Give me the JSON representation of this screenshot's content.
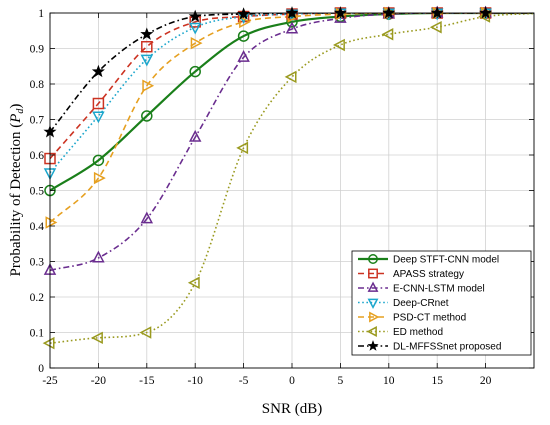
{
  "chart_data": {
    "type": "line",
    "xlabel": "SNR (dB)",
    "ylabel": "Probability of Detection (P_d)",
    "ylabel_main": "Probability of Detection (",
    "ylabel_sym": "P",
    "ylabel_sub": "d",
    "ylabel_close": ")",
    "xlim": [
      -25,
      25
    ],
    "ylim": [
      0,
      1
    ],
    "xticks": [
      -25,
      -20,
      -15,
      -10,
      -5,
      0,
      5,
      10,
      15,
      20
    ],
    "xtick_labels": [
      "-25",
      "-20",
      "-15",
      "-10",
      "-5",
      "0",
      "5",
      "10",
      "15",
      "20"
    ],
    "yticks": [
      0,
      0.1,
      0.2,
      0.3,
      0.4,
      0.5,
      0.6,
      0.7,
      0.8,
      0.9,
      1
    ],
    "ytick_labels": [
      "0",
      "0.1",
      "0.2",
      "0.3",
      "0.4",
      "0.5",
      "0.6",
      "0.7",
      "0.8",
      "0.9",
      "1"
    ],
    "grid": true,
    "legend_position": "bottom-right",
    "x": [
      -25,
      -20,
      -15,
      -10,
      -5,
      0,
      5,
      10,
      15,
      20
    ],
    "series": [
      {
        "name": "Deep STFT-CNN model",
        "color": "#1a7f1a",
        "dash": "solid",
        "marker": "circle",
        "values": [
          0.5,
          0.585,
          0.71,
          0.835,
          0.935,
          0.975,
          0.99,
          0.997,
          1.0,
          1.0
        ]
      },
      {
        "name": "APASS strategy",
        "color": "#cc3322",
        "dash": "dashed",
        "marker": "square",
        "values": [
          0.59,
          0.745,
          0.905,
          0.975,
          0.99,
          0.997,
          1.0,
          1.0,
          1.0,
          1.0
        ]
      },
      {
        "name": "E-CNN-LSTM model",
        "color": "#6a2d8f",
        "dash": "dashdot",
        "marker": "triangle-up",
        "values": [
          0.275,
          0.31,
          0.42,
          0.65,
          0.875,
          0.955,
          0.985,
          0.997,
          1.0,
          1.0
        ]
      },
      {
        "name": "Deep-CRnet",
        "color": "#1ba6cc",
        "dash": "dotted",
        "marker": "triangle-down",
        "values": [
          0.55,
          0.71,
          0.87,
          0.96,
          0.99,
          0.997,
          1.0,
          1.0,
          1.0,
          1.0
        ]
      },
      {
        "name": "PSD-CT method",
        "color": "#e6a020",
        "dash": "dashed",
        "marker": "triangle-right",
        "values": [
          0.41,
          0.535,
          0.795,
          0.915,
          0.975,
          0.99,
          0.997,
          1.0,
          1.0,
          1.0
        ]
      },
      {
        "name": "ED method",
        "color": "#9a9a1f",
        "dash": "dotted",
        "marker": "triangle-left",
        "values": [
          0.07,
          0.085,
          0.1,
          0.24,
          0.62,
          0.82,
          0.91,
          0.94,
          0.96,
          0.99
        ]
      },
      {
        "name": "DL-MFFSSnet proposed",
        "color": "#000000",
        "dash": "dashdot",
        "marker": "star",
        "values": [
          0.665,
          0.835,
          0.94,
          0.99,
          0.997,
          1.0,
          1.0,
          1.0,
          1.0,
          1.0
        ]
      }
    ]
  }
}
